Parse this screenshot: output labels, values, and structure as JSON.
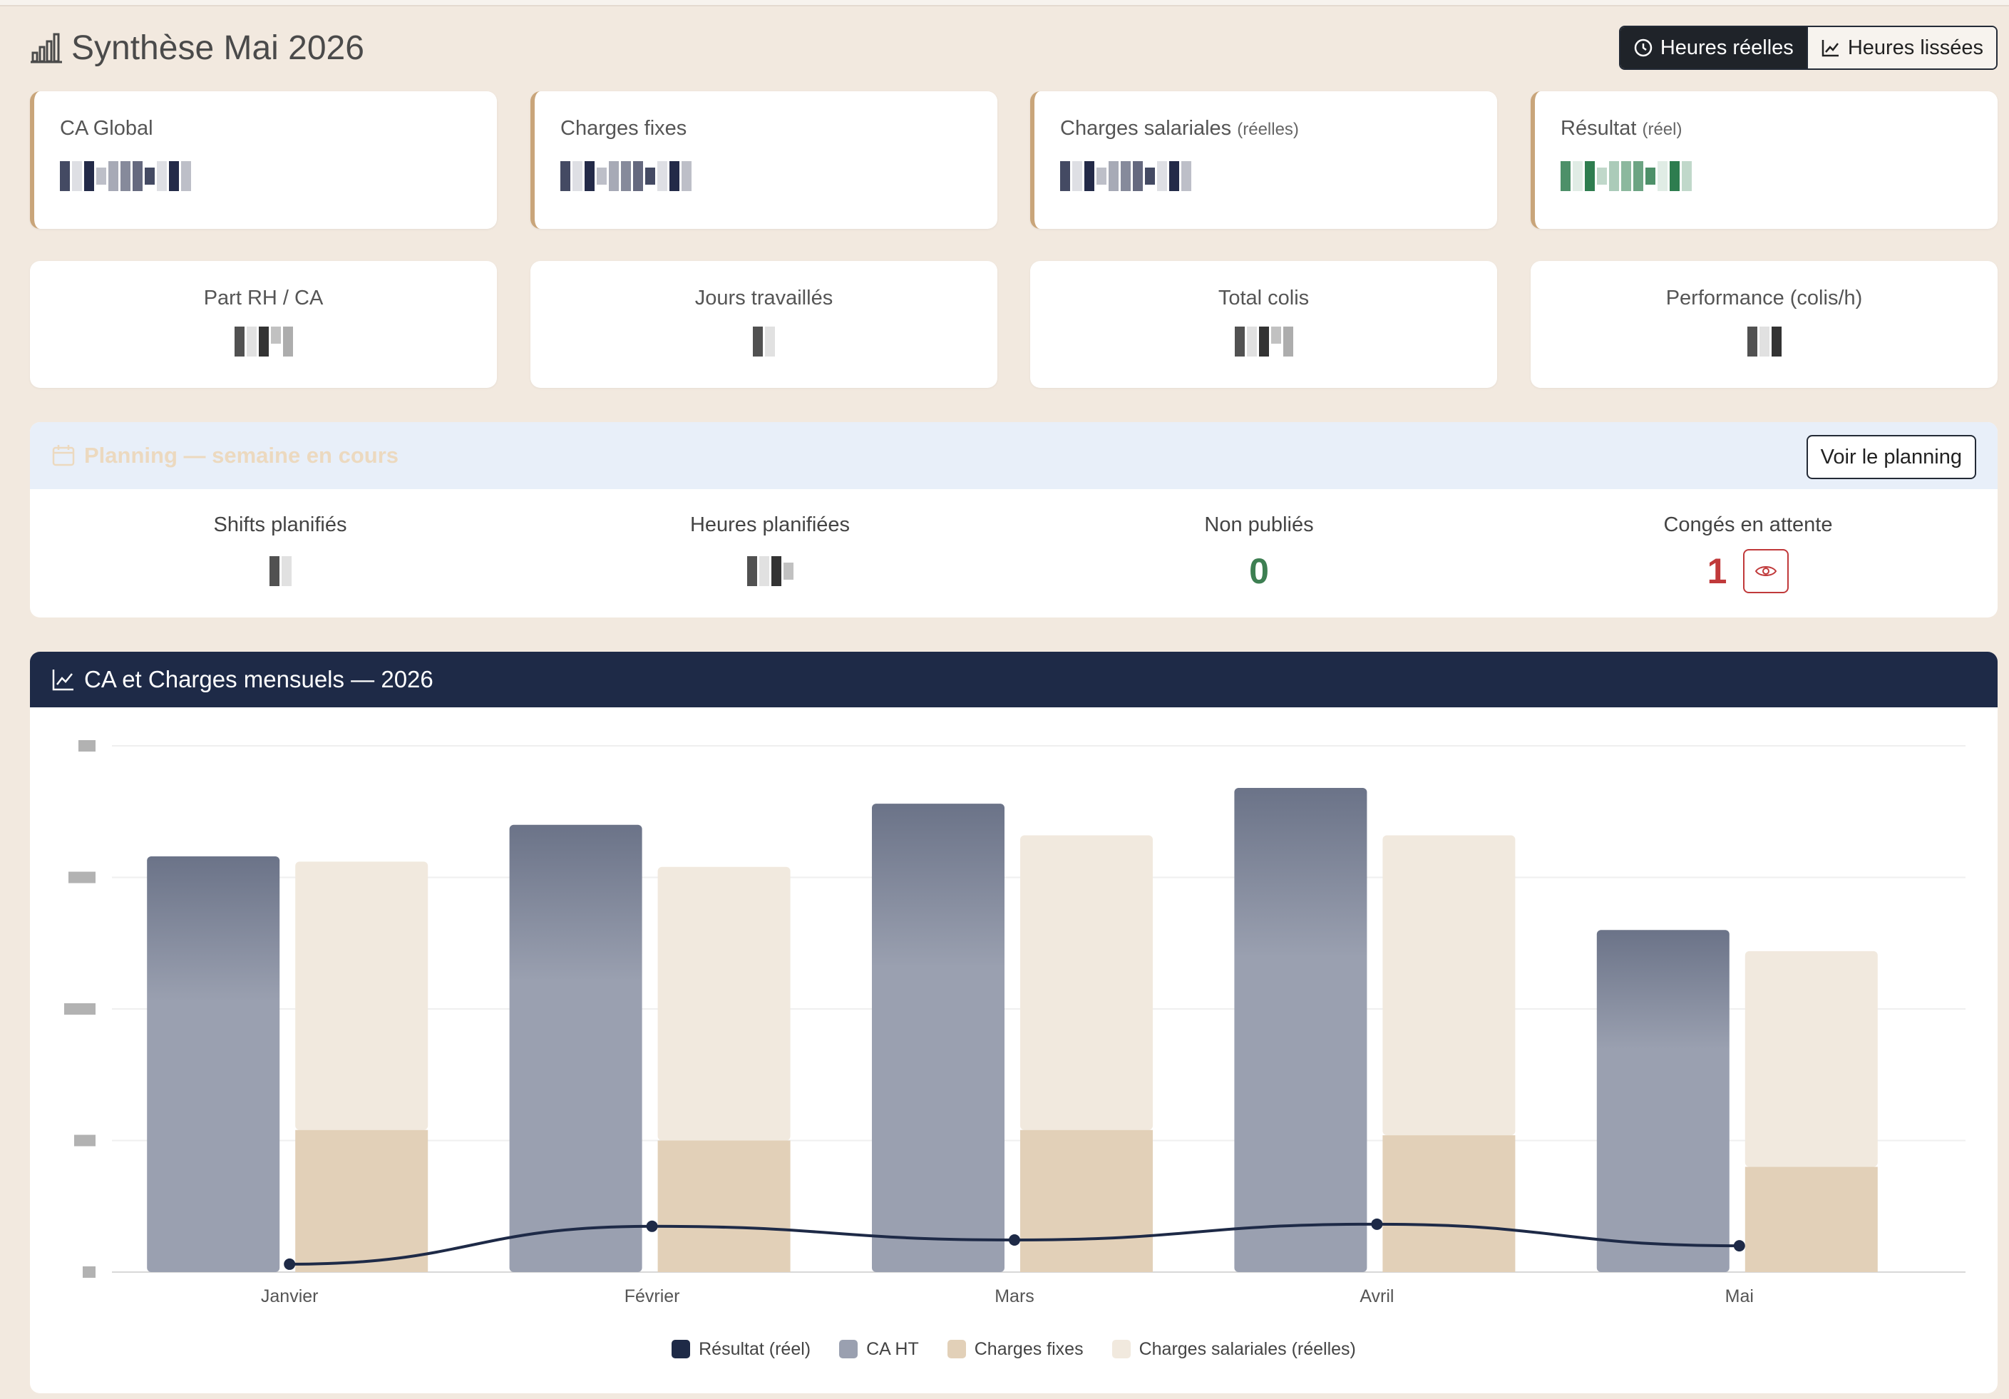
{
  "header": {
    "title": "Synthèse Mai 2026",
    "title_icon": "bar-chart-icon",
    "toggle": [
      {
        "label": "Heures réelles",
        "icon": "clock-icon",
        "active": true
      },
      {
        "label": "Heures lissées",
        "icon": "line-chart-icon",
        "active": false
      }
    ]
  },
  "kpis": [
    {
      "label": "CA Global",
      "sub": "",
      "value_color": "#232a48"
    },
    {
      "label": "Charges fixes",
      "sub": "",
      "value_color": "#232a48"
    },
    {
      "label": "Charges salariales",
      "sub": "(réelles)",
      "value_color": "#232a48"
    },
    {
      "label": "Résultat",
      "sub": "(réel)",
      "value_color": "#2e7d4f"
    }
  ],
  "stats": [
    {
      "label": "Part RH / CA"
    },
    {
      "label": "Jours travaillés"
    },
    {
      "label": "Total colis"
    },
    {
      "label": "Performance (colis/h)"
    }
  ],
  "planning": {
    "title": "Planning — semaine en cours",
    "button": "Voir le planning",
    "cols": [
      {
        "label": "Shifts planifiés",
        "value": ""
      },
      {
        "label": "Heures planifiées",
        "value": ""
      },
      {
        "label": "Non publiés",
        "value": "0"
      },
      {
        "label": "Congés en attente",
        "value": "1"
      }
    ]
  },
  "chart_panel": {
    "title": "CA et Charges mensuels — 2026"
  },
  "chart_data": {
    "type": "bar",
    "categories": [
      "Janvier",
      "Février",
      "Mars",
      "Avril",
      "Mai"
    ],
    "ylim": [
      0,
      100
    ],
    "yticks_count": 5,
    "series": [
      {
        "name": "CA HT",
        "type": "bar",
        "stack": "ca",
        "color": "#9aa0b0",
        "values": [
          79,
          85,
          89,
          92,
          65
        ]
      },
      {
        "name": "Charges fixes",
        "type": "bar",
        "stack": "charges",
        "color": "#e2d0b8",
        "values": [
          27,
          25,
          27,
          26,
          20
        ]
      },
      {
        "name": "Charges salariales (réelles)",
        "type": "bar",
        "stack": "charges",
        "color": "#f1e9de",
        "values": [
          51,
          52,
          56,
          57,
          41
        ]
      },
      {
        "name": "Résultat (réel)",
        "type": "line",
        "color": "#1e2a47",
        "values": [
          1.5,
          8.7,
          6.1,
          9.1,
          5.0
        ]
      }
    ],
    "legend": [
      {
        "name": "Résultat (réel)",
        "color": "#1e2a47"
      },
      {
        "name": "CA HT",
        "color": "#9aa0b0"
      },
      {
        "name": "Charges fixes",
        "color": "#e2d0b8"
      },
      {
        "name": "Charges salariales (réelles)",
        "color": "#f1e9de"
      }
    ],
    "legend_position": "bottom",
    "grid": true
  }
}
